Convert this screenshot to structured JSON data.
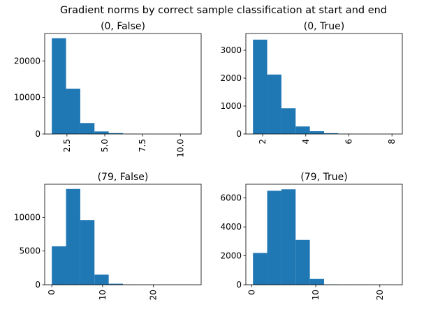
{
  "figure": {
    "suptitle": "Gradient norms by correct sample classification at start and end"
  },
  "chart_data": [
    {
      "type": "bar",
      "title": "(0, False)",
      "xlabel": "",
      "ylabel": "",
      "bin_edges": [
        1.5,
        2.44,
        3.38,
        4.32,
        5.26,
        6.2,
        7.14,
        8.08,
        9.02,
        9.96,
        10.9
      ],
      "values": [
        26200,
        12400,
        3000,
        700,
        250,
        60,
        20,
        10,
        5,
        3
      ],
      "xlim": [
        1.03,
        11.37
      ],
      "ylim": [
        0,
        27500
      ],
      "x_ticks": [
        2.5,
        5.0,
        7.5,
        10.0
      ],
      "x_tick_labels": [
        "2.5",
        "5.0",
        "7.5",
        "10.0"
      ],
      "y_ticks": [
        0,
        10000,
        20000
      ],
      "y_tick_labels": [
        "0",
        "10000",
        "20000"
      ],
      "color": "#1f77b4"
    },
    {
      "type": "bar",
      "title": "(0, True)",
      "xlabel": "",
      "ylabel": "",
      "bin_edges": [
        1.55,
        2.21,
        2.87,
        3.53,
        4.19,
        4.85,
        5.51,
        6.17,
        6.83,
        7.49,
        8.15
      ],
      "values": [
        3380,
        2130,
        920,
        270,
        100,
        30,
        10,
        5,
        2,
        1
      ],
      "xlim": [
        1.22,
        8.48
      ],
      "ylim": [
        0,
        3600
      ],
      "x_ticks": [
        2,
        4,
        6,
        8
      ],
      "x_tick_labels": [
        "2",
        "4",
        "6",
        "8"
      ],
      "y_ticks": [
        0,
        1000,
        2000,
        3000
      ],
      "y_tick_labels": [
        "0",
        "1000",
        "2000",
        "3000"
      ],
      "color": "#1f77b4"
    },
    {
      "type": "bar",
      "title": "(79, False)",
      "xlabel": "",
      "ylabel": "",
      "bin_edges": [
        0.0,
        2.8,
        5.6,
        8.4,
        11.2,
        14.0,
        16.8,
        19.6,
        22.4,
        25.2,
        28.0
      ],
      "values": [
        5700,
        14200,
        9600,
        1500,
        150,
        30,
        10,
        5,
        3,
        2
      ],
      "xlim": [
        -1.4,
        29.4
      ],
      "ylim": [
        0,
        14900
      ],
      "x_ticks": [
        0,
        10,
        20
      ],
      "x_tick_labels": [
        "0",
        "10",
        "20"
      ],
      "y_ticks": [
        0,
        5000,
        10000
      ],
      "y_tick_labels": [
        "0",
        "5000",
        "10000"
      ],
      "color": "#1f77b4"
    },
    {
      "type": "bar",
      "title": "(79, True)",
      "xlabel": "",
      "ylabel": "",
      "bin_edges": [
        0.2,
        2.42,
        4.64,
        6.86,
        9.08,
        11.3,
        13.52,
        15.74,
        17.96,
        20.18,
        22.4
      ],
      "values": [
        2200,
        6500,
        6600,
        3100,
        400,
        20,
        5,
        3,
        2,
        1
      ],
      "xlim": [
        -0.91,
        23.51
      ],
      "ylim": [
        0,
        6950
      ],
      "x_ticks": [
        0,
        10,
        20
      ],
      "x_tick_labels": [
        "0",
        "10",
        "20"
      ],
      "y_ticks": [
        0,
        2000,
        4000,
        6000
      ],
      "y_tick_labels": [
        "0",
        "2000",
        "4000",
        "6000"
      ],
      "color": "#1f77b4"
    }
  ]
}
